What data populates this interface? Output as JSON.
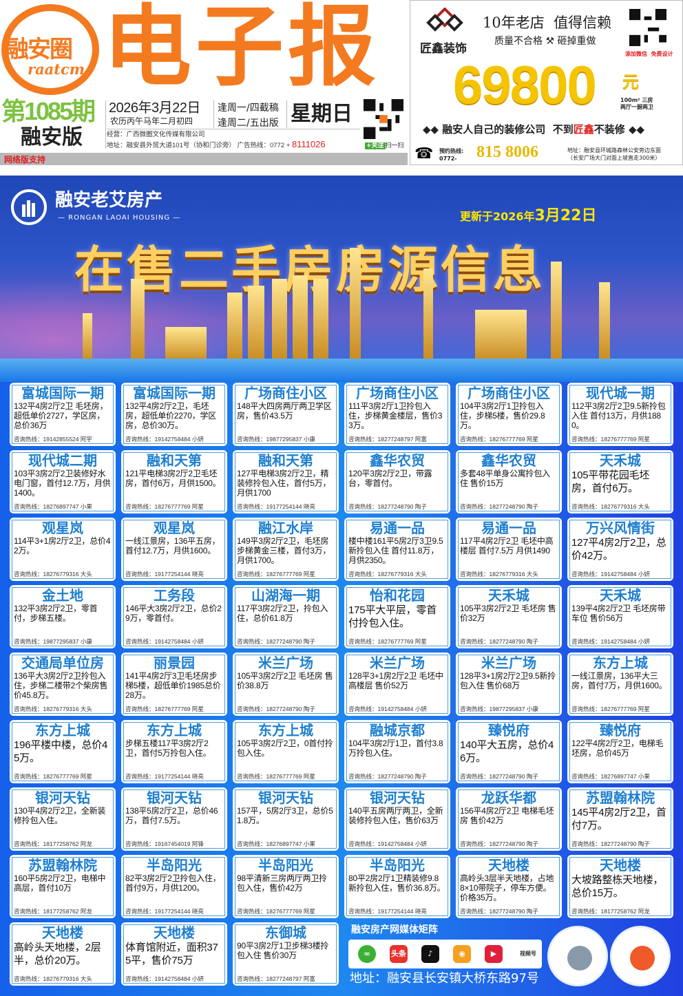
{
  "header": {
    "logo_text": "融安圈",
    "logo_sub": "raatcm",
    "title": "电子报",
    "issue": "第1085期",
    "edition": "融安版",
    "date": "2026年3月22日",
    "lunar": "农历丙午马年二月初四",
    "deadline": "逢周一/四截稿",
    "publish": "逢周二/五出版",
    "weekday": "星期日",
    "operator": "经营：广西微圈文化传媒有限公司",
    "address": "地址：融安县外贸大道101号（协和门诊旁）  广告热线：0772 + ",
    "hotline": "8111026",
    "follow": "+关注",
    "scan": "扫一扫",
    "net_support": "网络版支持"
  },
  "ad": {
    "brand": "匠鑫装饰",
    "slogan1": "10年老店  值得信赖",
    "slogan2": "质量不合格 ⚒ 砸掉重做",
    "wechat": "添加微信  免费设计",
    "price": "69800",
    "currency": "元",
    "spec1": "100m² 三房",
    "spec2": "两厅一厨两卫",
    "tagline_pre": "◆◆ 融安人自己的装修公司  不到",
    "tagline_brand": "匠鑫",
    "tagline_post": "不装修 ◆◆",
    "phone_label": "预约热线:",
    "phone_area": "0772-",
    "phone": "815 8006",
    "addr1": "地址：融安县环城路森林公安旁边东面",
    "addr2": "（长安广场大门对面上坡直走300米）"
  },
  "banner": {
    "brand": "融安老艾房产",
    "brand_en": "— RONGAN LAOAI HOUSING —",
    "updated_pre": "更新于2026年",
    "updated_date": "3月22日",
    "headline": "在售二手房房源信息"
  },
  "hotline_label": "咨询热线：",
  "listings": [
    {
      "title": "富城国际一期",
      "desc": "132平4房2厅2卫 毛坯房，超低单价2727，学区房，总价36万",
      "phone": "19142855524",
      "agent": "阿宇"
    },
    {
      "title": "富城国际一期",
      "desc": "132平4房2厅2卫，毛坯房，超低单价2270，学区房，总价30万。",
      "phone": "19142758484",
      "agent": "小妍"
    },
    {
      "title": "广场商住小区",
      "desc": "148平大四房两厅两卫学区房，售价43.5万",
      "phone": "19877295837",
      "agent": "小康"
    },
    {
      "title": "广场商住小区",
      "desc": "111平3房2厅1卫拎包入住，步梯黄金楼层，售价33万。",
      "phone": "18277248797",
      "agent": "阿富"
    },
    {
      "title": "广场商住小区",
      "desc": "104平3房2厅1卫拎包入住，步梯5楼，售价29.8万。",
      "phone": "18276777769",
      "agent": "阿星"
    },
    {
      "title": "现代城一期",
      "desc": "112平3房2厅2卫9.5新拎包入住 首付13万，月供1880。",
      "phone": "18276777769",
      "agent": "阿星"
    },
    {
      "title": "现代城二期",
      "desc": "103平3房2厅2卫装修好水电门窗，首付12.7万，月供1400。",
      "phone": "18276897747",
      "agent": "小果"
    },
    {
      "title": "融和天第",
      "desc": "121平电梯3房2厅2卫毛坯房，首付6万，月供1500。",
      "phone": "18276777769",
      "agent": "阿星"
    },
    {
      "title": "融和天第",
      "desc": "127平电梯3房2厅2卫，精装修拎包入住，首付5万，月供1700",
      "phone": "19177254144",
      "agent": "晓亮"
    },
    {
      "title": "鑫华农贸",
      "desc": "120平3房2厅2卫，带露台，零首付。",
      "phone": "18277248790",
      "agent": "陶子"
    },
    {
      "title": "鑫华农贸",
      "desc": "多套48平单身公寓拎包入住 售价15万",
      "phone": "18277248790",
      "agent": "陶子"
    },
    {
      "title": "天禾城",
      "desc": "105平带花园毛坯房，首付6万。",
      "phone": "18276779316",
      "agent": "大头"
    },
    {
      "title": "观星岚",
      "desc": "114平3+1房2厅2卫，总价42万。",
      "phone": "18276779316",
      "agent": "大头"
    },
    {
      "title": "观星岚",
      "desc": "一线江景房，136平五房，首付12.7万，月供1600。",
      "phone": "19177254144",
      "agent": "晓亮"
    },
    {
      "title": "融江水岸",
      "desc": "149平3房2厅2卫，毛坯房步梯黄金三楼，首付3万，月供1700。",
      "phone": "18276777769",
      "agent": "阿星"
    },
    {
      "title": "易通一品",
      "desc": "楼中楼161平5房2厅3卫9.5新拎包入住 首付11.8万，月供2350。",
      "phone": "18276779316",
      "agent": "大头"
    },
    {
      "title": "易通一品",
      "desc": "117平4房2厅2卫 毛坯中高楼层 首付7.5万 月供1490",
      "phone": "18276779316",
      "agent": "大头"
    },
    {
      "title": "万兴风情街",
      "desc": "127平4房2厅2卫，总价42万。",
      "phone": "19142758484",
      "agent": "小妍"
    },
    {
      "title": "金土地",
      "desc": "132平3房2厅2卫，零首付，步梯五楼。",
      "phone": "19877295837",
      "agent": "小康"
    },
    {
      "title": "工务段",
      "desc": "146平大3房2厅2卫，总价29万，零首付。",
      "phone": "19142758484",
      "agent": "小妍"
    },
    {
      "title": "山湖海一期",
      "desc": "117平3房2厅2卫，拎包入住，总价61.8万",
      "phone": "18277248790",
      "agent": "陶子"
    },
    {
      "title": "怡和花园",
      "desc": "175平大平层，零首付拎包入住。",
      "phone": "18276777769",
      "agent": "阿星"
    },
    {
      "title": "天禾城",
      "desc": "105平3房2厅2卫 毛坯房 售价32万",
      "phone": "18277248790",
      "agent": "陶子"
    },
    {
      "title": "天禾城",
      "desc": "139平4房2厅2卫 毛坯房带车位 售价56万",
      "phone": "19142758484",
      "agent": "小妍"
    },
    {
      "title": "交通局单位房",
      "desc": "136平大3房2厅2卫拎包入住，步梯二楼带2个柴房售价45.8万。",
      "phone": "18276779316",
      "agent": "大头"
    },
    {
      "title": "丽景园",
      "desc": "141平4房2厅3卫毛坯房步梯5楼，超低单价1985总价28万。",
      "phone": "18276777769",
      "agent": "阿星"
    },
    {
      "title": "米兰广场",
      "desc": "105平3房2厅2卫 毛坯房 售价38.8万",
      "phone": "18277248790",
      "agent": "陶子"
    },
    {
      "title": "米兰广场",
      "desc": "128平3+1房2厅2卫 毛坯中高楼层 售价52万",
      "phone": "19142758484",
      "agent": "小妍"
    },
    {
      "title": "米兰广场",
      "desc": "128平3+1房2厅2卫9.5新拎包入住 售价68万",
      "phone": "19877295837",
      "agent": "小康"
    },
    {
      "title": "东方上城",
      "desc": "一线江景房，136平大三房，首付7万，月供1600。",
      "phone": "18276777769",
      "agent": "阿星"
    },
    {
      "title": "东方上城",
      "desc": "196平楼中楼，总价45万。",
      "phone": "18276777769",
      "agent": "阿星"
    },
    {
      "title": "东方上城",
      "desc": "步梯五楼117平3房2厅2卫，首付5万拎包入住。",
      "phone": "19177254144",
      "agent": "晓亮"
    },
    {
      "title": "东方上城",
      "desc": "105平3房2厅2卫，0首付拎包入住。",
      "phone": "18276777769",
      "agent": "阿星"
    },
    {
      "title": "融城京都",
      "desc": "104平3房2厅1卫，首付3.8万拎包入住。",
      "phone": "18277248790",
      "agent": "陶子"
    },
    {
      "title": "臻悦府",
      "desc": "140平大五房，总价46万。",
      "phone": "18277248790",
      "agent": "陶子"
    },
    {
      "title": "臻悦府",
      "desc": "122平4房2厅2卫，电梯毛坯房，总价45万",
      "phone": "18276897747",
      "agent": "小果"
    },
    {
      "title": "银河天钻",
      "desc": "130平4房2厅2卫，全新装修拎包入住。",
      "phone": "18177258762",
      "agent": "阿龙"
    },
    {
      "title": "银河天钻",
      "desc": "138平5房2厅2卫，总价46万，首付7.5万。",
      "phone": "19167454019",
      "agent": "阿锋"
    },
    {
      "title": "银河天钻",
      "desc": "157平，5房2厅3卫，总价51.8万。",
      "phone": "18276897747",
      "agent": "小果"
    },
    {
      "title": "银河天钻",
      "desc": "140平五房两厅两卫，全新装修拎包入住，售价63万",
      "phone": "19142758484",
      "agent": "小妍"
    },
    {
      "title": "龙跃华都",
      "desc": "156平4房2厅2卫 电梯毛坯房 售价42万",
      "phone": "18277248790",
      "agent": "陶子"
    },
    {
      "title": "苏盟翰林院",
      "desc": "145平4房2厅2卫，首付7万。",
      "phone": "18277248790",
      "agent": "陶子"
    },
    {
      "title": "苏盟翰林院",
      "desc": "160平5房2厅2卫，电梯中高层，首付10万",
      "phone": "18177258762",
      "agent": "阿龙"
    },
    {
      "title": "半岛阳光",
      "desc": "82平3房2厅2卫拎包入住，首付9万，月供1200。",
      "phone": "19177254144",
      "agent": "晓亮"
    },
    {
      "title": "半岛阳光",
      "desc": "98平清新三房两厅两卫拎包入住，售价42万",
      "phone": "18276777769",
      "agent": "阿星"
    },
    {
      "title": "半岛阳光",
      "desc": "80平2房2厅1卫精装修9.8新拎包入住，售价36.8万。",
      "phone": "19177254144",
      "agent": "晓亮"
    },
    {
      "title": "天地楼",
      "desc": "高岭头3层半天地楼，占地8×10带院子，停车方便。价格35万。",
      "phone": "18277248790",
      "agent": "陶子"
    },
    {
      "title": "天地楼",
      "desc": "大坡路整栋天地楼，总价15万。",
      "phone": "18177258762",
      "agent": "阿龙"
    },
    {
      "title": "天地楼",
      "desc": "高岭头天地楼，2层半，总价20万。",
      "phone": "18276779316",
      "agent": "大头"
    },
    {
      "title": "天地楼",
      "desc": "体育馆附近，面积375平，售价75万",
      "phone": "19142758484",
      "agent": "小妍"
    },
    {
      "title": "东御城",
      "desc": "90平3房2厅1卫步梯3楼拎包入住 售价30万",
      "phone": "18277248797",
      "agent": "阿富"
    }
  ],
  "media": {
    "title": "融安房产网媒体矩阵",
    "icons": [
      {
        "name": "mini-program-icon",
        "label": "∞",
        "color": "#3cb035"
      },
      {
        "name": "toutiao-icon",
        "label": "头条",
        "color": "#e8322d"
      },
      {
        "name": "douyin-icon",
        "label": "♪",
        "color": "#111111"
      },
      {
        "name": "weibo-icon",
        "label": "◉",
        "color": "#f5a020"
      },
      {
        "name": "video-icon",
        "label": "▶",
        "color": "#e0203a"
      },
      {
        "name": "channels-icon",
        "label": "视频号",
        "color": "#f0a030"
      }
    ],
    "address": "地址：融安县长安镇大桥东路97号"
  },
  "colors": {
    "orange": "#f47a20",
    "green": "#7dc242",
    "title_blue": "#1e7fd0",
    "red": "#e02020"
  }
}
